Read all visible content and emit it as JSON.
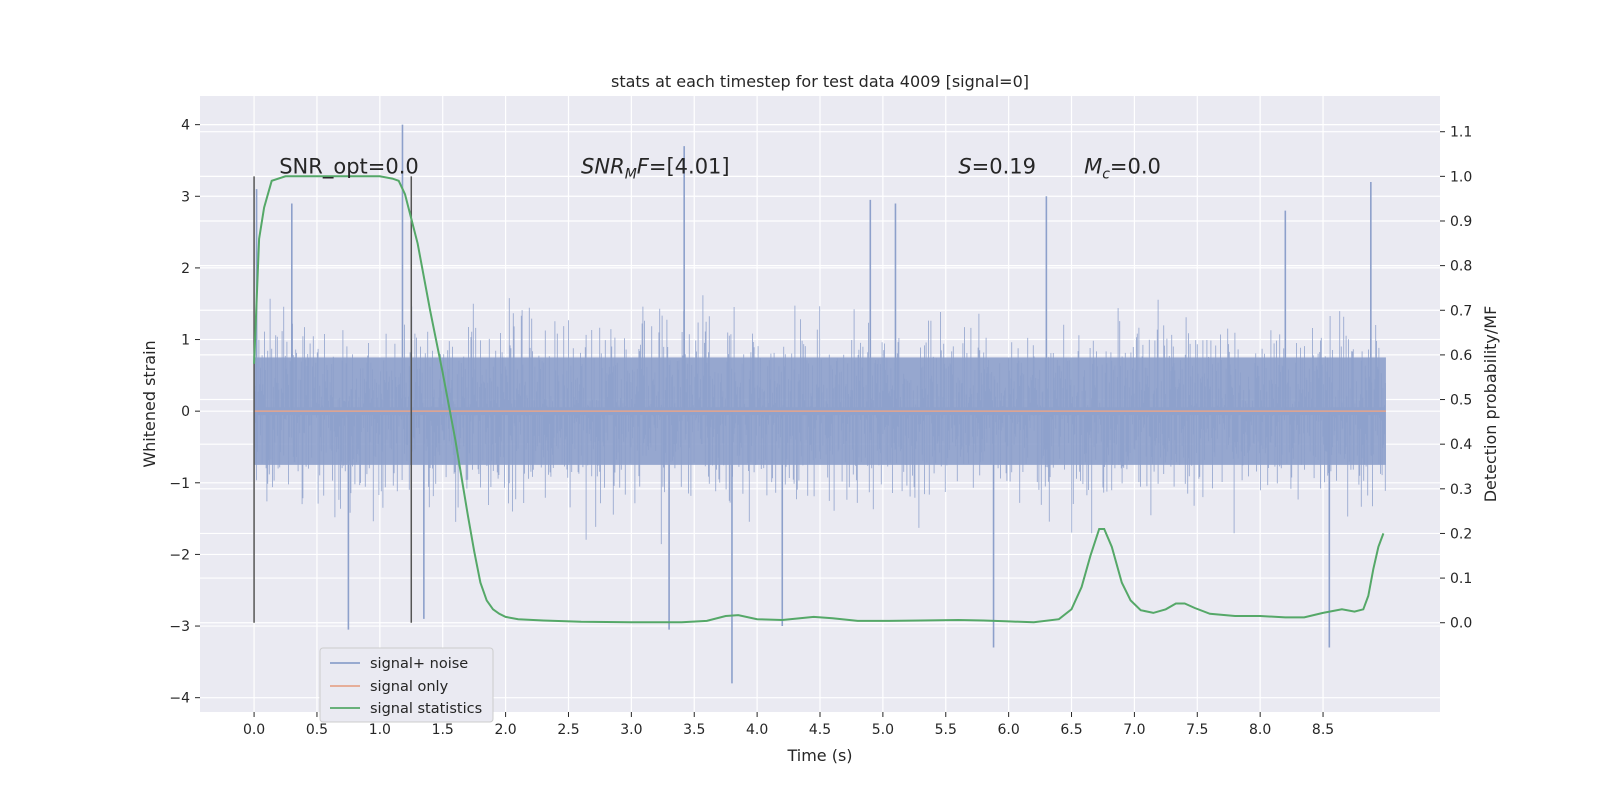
{
  "chart_data": {
    "type": "line",
    "title": "stats at each timestep for test data 4009 [signal=0]",
    "xlabel": "Time (s)",
    "ylabel_left": "Whitened strain",
    "ylabel_right": "Detection probability/MF",
    "xlim": [
      -0.43,
      9.43
    ],
    "ylim_left": [
      -4.2,
      4.4
    ],
    "ylim_right": [
      -0.2,
      1.18
    ],
    "xticks": [
      0.0,
      0.5,
      1.0,
      1.5,
      2.0,
      2.5,
      3.0,
      3.5,
      4.0,
      4.5,
      5.0,
      5.5,
      6.0,
      6.5,
      7.0,
      7.5,
      8.0,
      8.5
    ],
    "xtick_labels": [
      "0.0",
      "0.5",
      "1.0",
      "1.5",
      "2.0",
      "2.5",
      "3.0",
      "3.5",
      "4.0",
      "4.5",
      "5.0",
      "5.5",
      "6.0",
      "6.5",
      "7.0",
      "7.5",
      "8.0",
      "8.5"
    ],
    "yticks_left": [
      -4,
      -3,
      -2,
      -1,
      0,
      1,
      2,
      3,
      4
    ],
    "ytick_labels_left": [
      "−4",
      "−3",
      "−2",
      "−1",
      "0",
      "1",
      "2",
      "3",
      "4"
    ],
    "yticks_right": [
      0.0,
      0.1,
      0.2,
      0.3,
      0.4,
      0.5,
      0.6,
      0.7,
      0.8,
      0.9,
      1.0,
      1.1
    ],
    "ytick_labels_right": [
      "0.0",
      "0.1",
      "0.2",
      "0.3",
      "0.4",
      "0.5",
      "0.6",
      "0.7",
      "0.8",
      "0.9",
      "1.0",
      "1.1"
    ],
    "grid": true,
    "legend_position": "lower-left",
    "legend": [
      {
        "label": "signal+ noise",
        "color": "#8da0cb"
      },
      {
        "label": "signal only",
        "color": "#e5a58c"
      },
      {
        "label": "signal statistics",
        "color": "#55a868"
      }
    ],
    "annotations": [
      {
        "id": "snr_opt",
        "text": "SNR_opt=0.0",
        "x": 0.2,
        "y_right": 1.0
      },
      {
        "id": "snr_mf",
        "text": "SNR",
        "sub": "M",
        "tail": "F=[4.01]",
        "x": 2.6,
        "y_right": 1.0
      },
      {
        "id": "s",
        "text": "S",
        "tail": "=0.19",
        "x": 5.6,
        "y_right": 1.0
      },
      {
        "id": "mc",
        "text": "M",
        "sub": "c",
        "tail": "=0.0",
        "x": 6.6,
        "y_right": 1.0
      }
    ],
    "vertical_markers": [
      {
        "x": 0.0,
        "y_top_right": 1.0
      },
      {
        "x": 1.25,
        "y_top_right": 1.0
      }
    ],
    "series": [
      {
        "name": "signal+ noise",
        "color": "#8da0cb",
        "x_range": [
          0.0,
          9.0
        ],
        "core_band": [
          -0.75,
          0.75
        ],
        "spikes": [
          {
            "x": 0.02,
            "y": 3.1
          },
          {
            "x": 0.3,
            "y": 2.9
          },
          {
            "x": 0.75,
            "y": -3.05
          },
          {
            "x": 1.18,
            "y": 4.0
          },
          {
            "x": 1.35,
            "y": -2.9
          },
          {
            "x": 3.3,
            "y": -3.05
          },
          {
            "x": 3.42,
            "y": 3.7
          },
          {
            "x": 3.8,
            "y": -3.8
          },
          {
            "x": 4.2,
            "y": -3.0
          },
          {
            "x": 4.9,
            "y": 2.95
          },
          {
            "x": 5.1,
            "y": 2.9
          },
          {
            "x": 5.88,
            "y": -3.3
          },
          {
            "x": 6.3,
            "y": 3.0
          },
          {
            "x": 8.2,
            "y": 2.8
          },
          {
            "x": 8.55,
            "y": -3.3
          },
          {
            "x": 8.88,
            "y": 3.2
          }
        ]
      },
      {
        "name": "signal only",
        "color": "#e5a58c",
        "x": [
          0.0,
          9.0
        ],
        "y": [
          0.0,
          0.0
        ]
      },
      {
        "name": "signal statistics",
        "color": "#55a868",
        "axis": "right",
        "x": [
          0.0,
          0.04,
          0.08,
          0.14,
          0.25,
          0.4,
          0.6,
          0.8,
          1.0,
          1.1,
          1.15,
          1.2,
          1.3,
          1.4,
          1.5,
          1.6,
          1.7,
          1.75,
          1.8,
          1.85,
          1.9,
          1.95,
          2.0,
          2.1,
          2.3,
          2.6,
          3.0,
          3.4,
          3.6,
          3.75,
          3.85,
          4.0,
          4.2,
          4.45,
          4.6,
          4.8,
          5.0,
          5.3,
          5.6,
          5.8,
          6.0,
          6.2,
          6.4,
          6.5,
          6.58,
          6.65,
          6.72,
          6.76,
          6.82,
          6.9,
          6.97,
          7.05,
          7.15,
          7.25,
          7.33,
          7.4,
          7.48,
          7.6,
          7.8,
          8.0,
          8.2,
          8.35,
          8.5,
          8.65,
          8.75,
          8.82,
          8.86,
          8.9,
          8.94,
          8.98
        ],
        "y": [
          0.58,
          0.86,
          0.93,
          0.99,
          1.0,
          1.0,
          1.0,
          1.0,
          1.0,
          0.995,
          0.99,
          0.96,
          0.85,
          0.7,
          0.56,
          0.41,
          0.24,
          0.16,
          0.09,
          0.05,
          0.03,
          0.02,
          0.013,
          0.008,
          0.005,
          0.002,
          0.001,
          0.001,
          0.004,
          0.015,
          0.017,
          0.008,
          0.006,
          0.013,
          0.01,
          0.004,
          0.004,
          0.005,
          0.006,
          0.005,
          0.003,
          0.001,
          0.008,
          0.03,
          0.08,
          0.15,
          0.21,
          0.21,
          0.17,
          0.09,
          0.05,
          0.028,
          0.022,
          0.03,
          0.043,
          0.043,
          0.033,
          0.02,
          0.015,
          0.015,
          0.012,
          0.012,
          0.022,
          0.03,
          0.025,
          0.03,
          0.06,
          0.12,
          0.17,
          0.2
        ]
      }
    ]
  }
}
